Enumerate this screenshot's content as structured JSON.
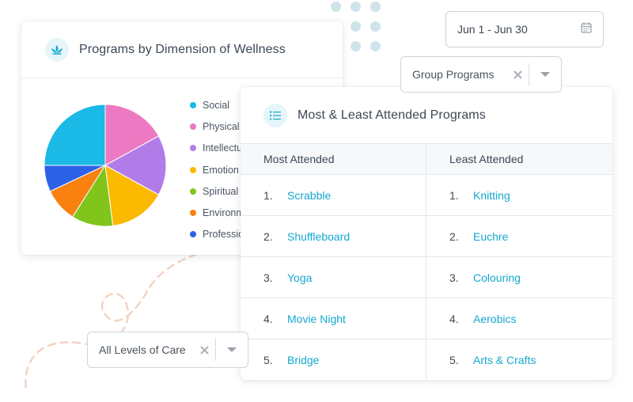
{
  "colors": {
    "accent": "#14a8cf",
    "icon_bg": "#e5f5f9",
    "decor_dots": "#cfe3ea",
    "decor_swirl": "#f3d2c4"
  },
  "wellness_card": {
    "icon": "lotus-icon",
    "title": "Programs by Dimension of Wellness",
    "legend": [
      {
        "label": "Social",
        "color": "#1ab9e6"
      },
      {
        "label": "Physical",
        "color": "#ec79c1"
      },
      {
        "label": "Intellectu",
        "color": "#b27ce8"
      },
      {
        "label": "Emotion",
        "color": "#fbb900"
      },
      {
        "label": "Spiritual",
        "color": "#80c41c"
      },
      {
        "label": "Environm",
        "color": "#f88110"
      },
      {
        "label": "Professio",
        "color": "#2d62e8"
      }
    ]
  },
  "chart_data": {
    "type": "pie",
    "slices": [
      {
        "label": "Social",
        "value": 25,
        "color": "#1ab9e6"
      },
      {
        "label": "Physical",
        "value": 17,
        "color": "#ec79c1"
      },
      {
        "label": "Intellectual",
        "value": 16,
        "color": "#b27ce8"
      },
      {
        "label": "Emotional",
        "value": 15,
        "color": "#fbb900"
      },
      {
        "label": "Spiritual",
        "value": 11,
        "color": "#80c41c"
      },
      {
        "label": "Environmental",
        "value": 9,
        "color": "#f88110"
      },
      {
        "label": "Professional",
        "value": 7,
        "color": "#2d62e8"
      }
    ]
  },
  "date_picker": {
    "value": "Jun 1 - Jun 30",
    "icon": "calendar-icon"
  },
  "group_select": {
    "value": "Group Programs",
    "clear_icon": "close-icon",
    "dropdown_icon": "caret-down-icon"
  },
  "levels_select": {
    "value": "All Levels of Care",
    "clear_icon": "close-icon",
    "dropdown_icon": "caret-down-icon"
  },
  "attended_card": {
    "icon": "list-icon",
    "title": "Most & Least Attended Programs",
    "most": {
      "header": "Most Attended",
      "items": [
        {
          "rank": "1.",
          "name": "Scrabble"
        },
        {
          "rank": "2.",
          "name": "Shuffleboard"
        },
        {
          "rank": "3.",
          "name": "Yoga"
        },
        {
          "rank": "4.",
          "name": "Movie Night"
        },
        {
          "rank": "5.",
          "name": "Bridge"
        }
      ]
    },
    "least": {
      "header": "Least Attended",
      "items": [
        {
          "rank": "1.",
          "name": "Knitting"
        },
        {
          "rank": "2.",
          "name": "Euchre"
        },
        {
          "rank": "3.",
          "name": "Colouring"
        },
        {
          "rank": "4.",
          "name": "Aerobics"
        },
        {
          "rank": "5.",
          "name": "Arts & Crafts"
        }
      ]
    }
  }
}
